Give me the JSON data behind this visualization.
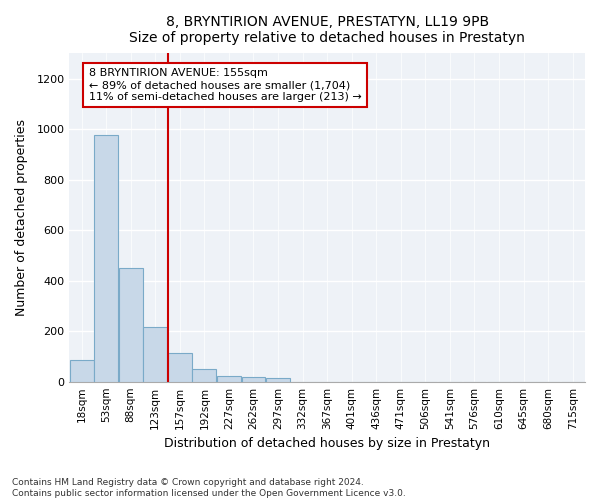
{
  "title": "8, BRYNTIRION AVENUE, PRESTATYN, LL19 9PB",
  "subtitle": "Size of property relative to detached houses in Prestatyn",
  "xlabel": "Distribution of detached houses by size in Prestatyn",
  "ylabel": "Number of detached properties",
  "bar_color": "#c8d8e8",
  "bar_edge_color": "#7aaac8",
  "bin_labels": [
    "18sqm",
    "53sqm",
    "88sqm",
    "123sqm",
    "157sqm",
    "192sqm",
    "227sqm",
    "262sqm",
    "297sqm",
    "332sqm",
    "367sqm",
    "401sqm",
    "436sqm",
    "471sqm",
    "506sqm",
    "541sqm",
    "576sqm",
    "610sqm",
    "645sqm",
    "680sqm",
    "715sqm"
  ],
  "bar_values": [
    85,
    975,
    450,
    215,
    115,
    50,
    22,
    20,
    13,
    0,
    0,
    0,
    0,
    0,
    0,
    0,
    0,
    0,
    0,
    0,
    0
  ],
  "annotation_text": "8 BRYNTIRION AVENUE: 155sqm\n← 89% of detached houses are smaller (1,704)\n11% of semi-detached houses are larger (213) →",
  "annotation_box_color": "#ffffff",
  "annotation_box_edge_color": "#cc0000",
  "vline_color": "#cc0000",
  "footer_line1": "Contains HM Land Registry data © Crown copyright and database right 2024.",
  "footer_line2": "Contains public sector information licensed under the Open Government Licence v3.0.",
  "background_color": "#eef2f7",
  "ylim": [
    0,
    1300
  ],
  "yticks": [
    0,
    200,
    400,
    600,
    800,
    1000,
    1200
  ],
  "vline_x_index": 4
}
